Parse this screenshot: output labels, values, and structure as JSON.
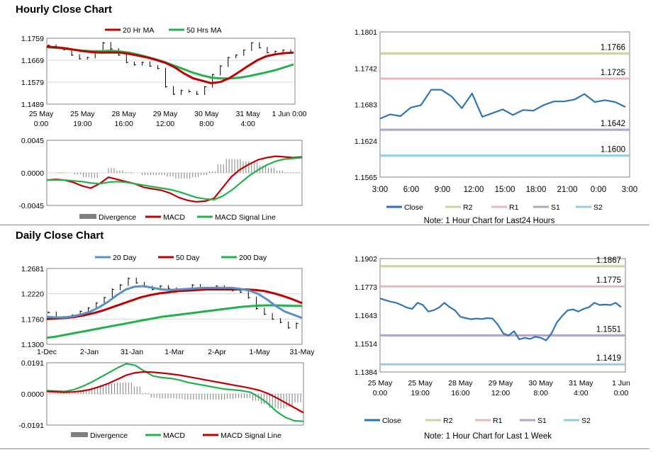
{
  "titles": {
    "hourly": "Hourly Close Chart",
    "daily": "Daily Close Chart"
  },
  "colors": {
    "red": "#c00000",
    "green": "#22b14c",
    "blue": "#2e75b6",
    "steel": "#5b8fc7",
    "r2": "#c3d69b",
    "r1": "#e6b9b8",
    "s1": "#b3a2c7",
    "s2": "#93cddd",
    "bar": "#7f7f7f",
    "axis": "#808080",
    "grid": "#d9d9d9"
  },
  "chart_data": [
    {
      "id": "hourly_price",
      "type": "line",
      "ylim": [
        1.1489,
        1.1759
      ],
      "yticks": [
        "1.1759",
        "1.1669",
        "1.1579",
        "1.1489"
      ],
      "xticks": [
        [
          "25 May",
          "0:00"
        ],
        [
          "25 May",
          "19:00"
        ],
        [
          "28 May",
          "16:00"
        ],
        [
          "29 May",
          "12:00"
        ],
        [
          "30 May",
          "8:00"
        ],
        [
          "31 May",
          "4:00"
        ],
        [
          "1 Jun 0:00",
          ""
        ]
      ],
      "legend": [
        "20 Hr MA",
        "50 Hrs MA"
      ],
      "ma20": [
        1.1725,
        1.1722,
        1.1718,
        1.1712,
        1.1706,
        1.1702,
        1.17,
        1.1701,
        1.17,
        1.1695,
        1.1688,
        1.168,
        1.167,
        1.1658,
        1.164,
        1.1615,
        1.1595,
        1.1585,
        1.1575,
        1.158,
        1.1596,
        1.162,
        1.1645,
        1.1668,
        1.1685,
        1.1693,
        1.1698,
        1.17
      ],
      "ma50": [
        1.1722,
        1.172,
        1.1716,
        1.1712,
        1.1708,
        1.1706,
        1.1706,
        1.1708,
        1.1705,
        1.17,
        1.1692,
        1.1682,
        1.1672,
        1.166,
        1.1646,
        1.1632,
        1.1618,
        1.1607,
        1.1598,
        1.1594,
        1.1594,
        1.1597,
        1.1603,
        1.1611,
        1.1619,
        1.1628,
        1.164,
        1.1652
      ],
      "close": [
        1.173,
        1.1718,
        1.1712,
        1.169,
        1.1675,
        1.168,
        1.17,
        1.174,
        1.1715,
        1.169,
        1.166,
        1.165,
        1.166,
        1.1645,
        1.1635,
        1.156,
        1.153,
        1.1545,
        1.154,
        1.153,
        1.156,
        1.161,
        1.1645,
        1.168,
        1.169,
        1.171,
        1.174,
        1.172,
        1.17,
        1.1705,
        1.171,
        1.17
      ]
    },
    {
      "id": "hourly_macd",
      "type": "bar+line",
      "ylim": [
        -0.0045,
        0.0045
      ],
      "yticks": [
        "0.0045",
        "0.0000",
        "-0.0045"
      ],
      "legend": [
        "Divergence",
        "MACD",
        "MACD Signal Line"
      ],
      "macd": [
        -0.001,
        -0.0009,
        -0.001,
        -0.0013,
        -0.0018,
        -0.0021,
        -0.0015,
        -0.0006,
        -0.0009,
        -0.0012,
        -0.0015,
        -0.002,
        -0.0022,
        -0.0024,
        -0.0028,
        -0.0034,
        -0.0038,
        -0.004,
        -0.0039,
        -0.0035,
        -0.002,
        -0.0005,
        0.0005,
        0.0012,
        0.0018,
        0.0021,
        0.0023,
        0.0022,
        0.0021,
        0.0022
      ],
      "signal": [
        -0.001,
        -0.001,
        -0.001,
        -0.0011,
        -0.0012,
        -0.0014,
        -0.0015,
        -0.0013,
        -0.0012,
        -0.0013,
        -0.0015,
        -0.0017,
        -0.0019,
        -0.0021,
        -0.0023,
        -0.0026,
        -0.003,
        -0.0034,
        -0.0036,
        -0.0037,
        -0.0032,
        -0.0024,
        -0.0014,
        -0.0004,
        0.0004,
        0.0011,
        0.0016,
        0.0019,
        0.002,
        0.0021
      ],
      "divergence": [
        0.0,
        0.0001,
        0.0,
        -0.0002,
        -0.0006,
        -0.0007,
        0.0,
        0.0007,
        0.0003,
        0.0001,
        0.0,
        -0.0003,
        -0.0003,
        -0.0003,
        -0.0005,
        -0.0008,
        -0.0008,
        -0.0006,
        -0.0003,
        0.0002,
        0.0012,
        0.0019,
        0.0019,
        0.0016,
        0.0014,
        0.001,
        0.0007,
        0.0003,
        0.0001,
        0.0001
      ]
    },
    {
      "id": "hourly_levels",
      "type": "line",
      "ylim": [
        1.1565,
        1.1801
      ],
      "yticks": [
        "1.1801",
        "1.1742",
        "1.1683",
        "1.1624",
        "1.1565"
      ],
      "xticks": [
        "3:00",
        "6:00",
        "9:00",
        "12:00",
        "15:00",
        "18:00",
        "21:00",
        "0:00",
        "3:00"
      ],
      "levels": [
        {
          "name": "R2",
          "value": 1.1766,
          "label": "1.1766"
        },
        {
          "name": "R1",
          "value": 1.1725,
          "label": "1.1725"
        },
        {
          "name": "S1",
          "value": 1.1642,
          "label": "1.1642"
        },
        {
          "name": "S2",
          "value": 1.16,
          "label": "1.1600"
        }
      ],
      "close": [
        1.166,
        1.1667,
        1.1664,
        1.1678,
        1.1682,
        1.1707,
        1.1707,
        1.1696,
        1.1677,
        1.1701,
        1.1663,
        1.1669,
        1.1675,
        1.1666,
        1.1674,
        1.1673,
        1.1682,
        1.1688,
        1.1688,
        1.1691,
        1.17,
        1.1687,
        1.169,
        1.1687,
        1.1679
      ],
      "legend": [
        "Close",
        "R2",
        "R1",
        "S1",
        "S2"
      ],
      "note": "Note: 1 Hour Chart for Last24 Hours"
    },
    {
      "id": "daily_price",
      "type": "line",
      "ylim": [
        1.13,
        1.2681
      ],
      "yticks": [
        "1.2681",
        "1.2220",
        "1.1760",
        "1.1300"
      ],
      "xticks": [
        "1-Dec",
        "2-Jan",
        "31-Jan",
        "1-Mar",
        "2-Apr",
        "1-May",
        "31-May"
      ],
      "legend": [
        "20 Day",
        "50 Day",
        "200 Day"
      ],
      "close": [
        1.188,
        1.18,
        1.179,
        1.183,
        1.19,
        1.196,
        1.205,
        1.215,
        1.23,
        1.238,
        1.25,
        1.242,
        1.235,
        1.23,
        1.236,
        1.232,
        1.228,
        1.23,
        1.238,
        1.232,
        1.233,
        1.236,
        1.23,
        1.228,
        1.225,
        1.215,
        1.195,
        1.185,
        1.176,
        1.17,
        1.16,
        1.168
      ],
      "ma20": [
        1.18,
        1.179,
        1.179,
        1.181,
        1.185,
        1.19,
        1.198,
        1.208,
        1.22,
        1.23,
        1.235,
        1.236,
        1.233,
        1.23,
        1.229,
        1.23,
        1.231,
        1.232,
        1.233,
        1.233,
        1.233,
        1.233,
        1.231,
        1.228,
        1.222,
        1.212,
        1.2,
        1.19,
        1.184,
        1.178
      ],
      "ma50": [
        1.176,
        1.177,
        1.178,
        1.18,
        1.183,
        1.187,
        1.192,
        1.198,
        1.204,
        1.21,
        1.216,
        1.22,
        1.223,
        1.225,
        1.227,
        1.228,
        1.229,
        1.23,
        1.23,
        1.23,
        1.23,
        1.23,
        1.229,
        1.227,
        1.223,
        1.218,
        1.212,
        1.205
      ],
      "ma200": [
        1.142,
        1.144,
        1.147,
        1.15,
        1.153,
        1.156,
        1.159,
        1.162,
        1.165,
        1.168,
        1.171,
        1.174,
        1.177,
        1.18,
        1.182,
        1.184,
        1.186,
        1.188,
        1.19,
        1.192,
        1.194,
        1.196,
        1.198,
        1.1995,
        1.2005,
        1.201,
        1.201,
        1.2005,
        1.2,
        1.2
      ]
    },
    {
      "id": "daily_macd",
      "type": "bar+line",
      "ylim": [
        -0.0191,
        0.0191
      ],
      "yticks": [
        "0.0191",
        "0.0000",
        "-0.0191"
      ],
      "legend": [
        "Divergence",
        "MACD",
        "MACD Signal Line"
      ],
      "macd": [
        0.002,
        0.0018,
        0.0015,
        0.0025,
        0.0045,
        0.007,
        0.01,
        0.013,
        0.016,
        0.0185,
        0.0175,
        0.014,
        0.011,
        0.01,
        0.0095,
        0.0085,
        0.007,
        0.006,
        0.005,
        0.004,
        0.003,
        0.0025,
        0.002,
        0.001,
        -0.002,
        -0.006,
        -0.011,
        -0.0145,
        -0.0165,
        -0.0168
      ],
      "signal": [
        0.0015,
        0.0012,
        0.001,
        0.0012,
        0.0018,
        0.0028,
        0.0045,
        0.0065,
        0.009,
        0.0115,
        0.013,
        0.0135,
        0.0133,
        0.0128,
        0.0122,
        0.0115,
        0.0105,
        0.0095,
        0.0085,
        0.0075,
        0.0065,
        0.0055,
        0.0045,
        0.0035,
        0.0022,
        0.0002,
        -0.0025,
        -0.0055,
        -0.0085,
        -0.0115
      ],
      "divergence": [
        0.0005,
        0.0006,
        0.0005,
        0.0013,
        0.0027,
        0.0042,
        0.0055,
        0.0065,
        0.007,
        0.007,
        0.0045,
        0.0005,
        -0.0023,
        -0.0028,
        -0.0027,
        -0.003,
        -0.0035,
        -0.0035,
        -0.0035,
        -0.0035,
        -0.0035,
        -0.003,
        -0.0025,
        -0.0025,
        -0.0042,
        -0.0062,
        -0.0085,
        -0.009,
        -0.008,
        -0.0053
      ]
    },
    {
      "id": "daily_levels",
      "type": "line",
      "ylim": [
        1.1384,
        1.1902
      ],
      "yticks": [
        "1.1902",
        "1.1773",
        "1.1643",
        "1.1514",
        "1.1384"
      ],
      "xticks": [
        [
          "25 May",
          "0:00"
        ],
        [
          "25 May",
          "19:00"
        ],
        [
          "28 May",
          "16:00"
        ],
        [
          "29 May",
          "12:00"
        ],
        [
          "30 May",
          "8:00"
        ],
        [
          "31 May",
          "4:00"
        ],
        [
          "1 Jun",
          "0:00"
        ]
      ],
      "levels": [
        {
          "name": "R2",
          "value": 1.1867,
          "label": "1.1867"
        },
        {
          "name": "R1",
          "value": 1.1775,
          "label": "1.1775"
        },
        {
          "name": "S1",
          "value": 1.1551,
          "label": "1.1551"
        },
        {
          "name": "S2",
          "value": 1.1419,
          "label": "1.1419"
        }
      ],
      "close": [
        1.172,
        1.1712,
        1.1705,
        1.17,
        1.169,
        1.1678,
        1.1672,
        1.17,
        1.169,
        1.166,
        1.1666,
        1.1678,
        1.17,
        1.168,
        1.1665,
        1.1636,
        1.163,
        1.1625,
        1.1628,
        1.1626,
        1.163,
        1.1628,
        1.16,
        1.156,
        1.155,
        1.157,
        1.1533,
        1.154,
        1.1535,
        1.1545,
        1.154,
        1.1528,
        1.156,
        1.161,
        1.164,
        1.1665,
        1.167,
        1.166,
        1.1672,
        1.168,
        1.17,
        1.169,
        1.1692,
        1.169,
        1.17,
        1.168
      ],
      "legend": [
        "Close",
        "R2",
        "R1",
        "S1",
        "S2"
      ],
      "note": "Note: 1 Hour Chart for Last 1 Week"
    }
  ]
}
